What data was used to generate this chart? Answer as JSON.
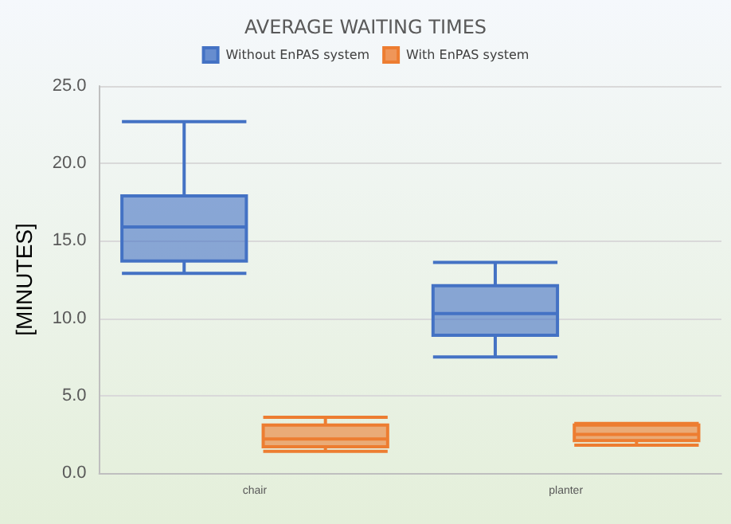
{
  "chart_data": {
    "type": "box",
    "title": "AVERAGE WAITING TIMES",
    "ylabel": "[MINUTES]",
    "categories": [
      "chair",
      "planter"
    ],
    "series": [
      {
        "name": "Without EnPAS system",
        "color": "#4472c4",
        "boxes": [
          {
            "low": 12.9,
            "q1": 13.7,
            "median": 15.9,
            "q3": 17.9,
            "high": 22.7
          },
          {
            "low": 7.5,
            "q1": 8.9,
            "median": 10.3,
            "q3": 12.1,
            "high": 13.6
          }
        ]
      },
      {
        "name": "With EnPAS system",
        "color": "#ed7d31",
        "boxes": [
          {
            "low": 1.4,
            "q1": 1.7,
            "median": 2.2,
            "q3": 3.1,
            "high": 3.6
          },
          {
            "low": 1.8,
            "q1": 2.1,
            "median": 2.5,
            "q3": 3.1,
            "high": 3.2
          }
        ]
      }
    ],
    "ylim": [
      0,
      25
    ],
    "yticks": [
      {
        "value": 0,
        "label": "0.0"
      },
      {
        "value": 5,
        "label": "5.0"
      },
      {
        "value": 10,
        "label": "10.0"
      },
      {
        "value": 15,
        "label": "15.0"
      },
      {
        "value": 20,
        "label": "20.0"
      },
      {
        "value": 25,
        "label": "25.0"
      }
    ],
    "grid": "y",
    "legend": "top"
  }
}
